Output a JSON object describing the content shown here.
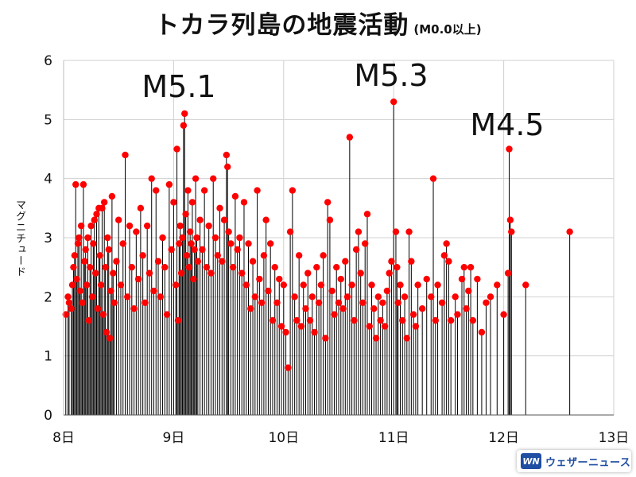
{
  "chart_data": {
    "type": "scatter",
    "title": "トカラ列島の地震活動",
    "subtitle": "(M0.0以上)",
    "xlabel": "",
    "ylabel": "マグニチュード",
    "xlim": [
      8,
      13
    ],
    "ylim": [
      0,
      6
    ],
    "xticks": [
      8,
      9,
      10,
      11,
      12,
      13
    ],
    "xtick_labels": [
      "8日",
      "9日",
      "10日",
      "11日",
      "12日",
      "13日"
    ],
    "yticks": [
      0,
      1,
      2,
      3,
      4,
      5,
      6
    ],
    "ytick_labels": [
      "0",
      "1",
      "2",
      "3",
      "4",
      "5",
      "6"
    ],
    "grid": true,
    "marker_color": "#ff0000",
    "stem_color": "#000000",
    "annotations": [
      {
        "text": "M5.1",
        "x": 9.1,
        "y": 5.1
      },
      {
        "text": "M5.3",
        "x": 11.0,
        "y": 5.3
      },
      {
        "text": "M4.5",
        "x": 12.05,
        "y": 4.5
      }
    ],
    "points": [
      [
        8.02,
        1.7
      ],
      [
        8.04,
        2.0
      ],
      [
        8.05,
        1.9
      ],
      [
        8.07,
        1.8
      ],
      [
        8.08,
        2.2
      ],
      [
        8.09,
        2.5
      ],
      [
        8.1,
        2.7
      ],
      [
        8.11,
        3.9
      ],
      [
        8.12,
        2.3
      ],
      [
        8.13,
        2.9
      ],
      [
        8.14,
        3.0
      ],
      [
        8.15,
        2.1
      ],
      [
        8.16,
        3.2
      ],
      [
        8.17,
        1.9
      ],
      [
        8.18,
        3.9
      ],
      [
        8.19,
        2.6
      ],
      [
        8.2,
        2.8
      ],
      [
        8.21,
        2.2
      ],
      [
        8.22,
        3.0
      ],
      [
        8.23,
        1.6
      ],
      [
        8.24,
        2.5
      ],
      [
        8.25,
        3.2
      ],
      [
        8.26,
        2.0
      ],
      [
        8.27,
        2.9
      ],
      [
        8.28,
        3.3
      ],
      [
        8.29,
        2.4
      ],
      [
        8.3,
        3.4
      ],
      [
        8.31,
        1.8
      ],
      [
        8.32,
        3.5
      ],
      [
        8.33,
        2.7
      ],
      [
        8.34,
        2.2
      ],
      [
        8.35,
        3.5
      ],
      [
        8.36,
        1.7
      ],
      [
        8.37,
        3.6
      ],
      [
        8.38,
        2.5
      ],
      [
        8.39,
        1.4
      ],
      [
        8.4,
        3.0
      ],
      [
        8.41,
        2.8
      ],
      [
        8.42,
        1.3
      ],
      [
        8.43,
        2.1
      ],
      [
        8.44,
        3.7
      ],
      [
        8.45,
        2.4
      ],
      [
        8.46,
        1.9
      ],
      [
        8.48,
        2.6
      ],
      [
        8.5,
        3.3
      ],
      [
        8.52,
        2.2
      ],
      [
        8.54,
        2.9
      ],
      [
        8.56,
        4.4
      ],
      [
        8.58,
        2.0
      ],
      [
        8.6,
        3.2
      ],
      [
        8.62,
        2.5
      ],
      [
        8.64,
        1.8
      ],
      [
        8.66,
        3.1
      ],
      [
        8.68,
        2.3
      ],
      [
        8.7,
        3.5
      ],
      [
        8.72,
        2.7
      ],
      [
        8.74,
        1.9
      ],
      [
        8.76,
        3.2
      ],
      [
        8.78,
        2.4
      ],
      [
        8.8,
        4.0
      ],
      [
        8.82,
        2.1
      ],
      [
        8.84,
        3.8
      ],
      [
        8.86,
        2.6
      ],
      [
        8.88,
        2.0
      ],
      [
        8.9,
        3.0
      ],
      [
        8.92,
        2.5
      ],
      [
        8.94,
        1.7
      ],
      [
        8.96,
        3.9
      ],
      [
        8.98,
        2.8
      ],
      [
        9.0,
        3.6
      ],
      [
        9.02,
        2.2
      ],
      [
        9.03,
        4.5
      ],
      [
        9.04,
        1.6
      ],
      [
        9.05,
        2.9
      ],
      [
        9.06,
        3.2
      ],
      [
        9.07,
        2.4
      ],
      [
        9.08,
        3.0
      ],
      [
        9.09,
        4.9
      ],
      [
        9.1,
        5.1
      ],
      [
        9.11,
        3.4
      ],
      [
        9.12,
        2.7
      ],
      [
        9.13,
        3.8
      ],
      [
        9.14,
        2.5
      ],
      [
        9.15,
        3.1
      ],
      [
        9.16,
        2.9
      ],
      [
        9.17,
        3.6
      ],
      [
        9.18,
        2.3
      ],
      [
        9.19,
        2.8
      ],
      [
        9.2,
        4.0
      ],
      [
        9.21,
        3.0
      ],
      [
        9.22,
        2.6
      ],
      [
        9.24,
        3.3
      ],
      [
        9.26,
        2.8
      ],
      [
        9.28,
        3.8
      ],
      [
        9.3,
        2.5
      ],
      [
        9.32,
        3.2
      ],
      [
        9.34,
        2.4
      ],
      [
        9.36,
        4.0
      ],
      [
        9.38,
        3.0
      ],
      [
        9.4,
        2.7
      ],
      [
        9.42,
        3.5
      ],
      [
        9.44,
        2.6
      ],
      [
        9.46,
        3.3
      ],
      [
        9.48,
        4.4
      ],
      [
        9.49,
        4.2
      ],
      [
        9.5,
        3.1
      ],
      [
        9.52,
        2.9
      ],
      [
        9.54,
        2.5
      ],
      [
        9.56,
        3.7
      ],
      [
        9.58,
        2.8
      ],
      [
        9.6,
        3.0
      ],
      [
        9.62,
        2.4
      ],
      [
        9.64,
        3.6
      ],
      [
        9.66,
        2.2
      ],
      [
        9.68,
        2.9
      ],
      [
        9.7,
        1.8
      ],
      [
        9.72,
        2.6
      ],
      [
        9.74,
        2.0
      ],
      [
        9.76,
        3.8
      ],
      [
        9.78,
        2.3
      ],
      [
        9.8,
        1.9
      ],
      [
        9.82,
        2.7
      ],
      [
        9.84,
        3.3
      ],
      [
        9.86,
        2.1
      ],
      [
        9.88,
        2.9
      ],
      [
        9.9,
        1.6
      ],
      [
        9.92,
        2.5
      ],
      [
        9.94,
        1.9
      ],
      [
        9.96,
        2.3
      ],
      [
        9.98,
        1.5
      ],
      [
        10.0,
        2.2
      ],
      [
        10.02,
        1.4
      ],
      [
        10.04,
        0.8
      ],
      [
        10.06,
        3.1
      ],
      [
        10.08,
        3.8
      ],
      [
        10.1,
        2.0
      ],
      [
        10.12,
        1.6
      ],
      [
        10.14,
        2.7
      ],
      [
        10.16,
        1.5
      ],
      [
        10.18,
        2.2
      ],
      [
        10.2,
        1.8
      ],
      [
        10.22,
        2.4
      ],
      [
        10.24,
        1.6
      ],
      [
        10.26,
        2.0
      ],
      [
        10.28,
        1.4
      ],
      [
        10.3,
        2.5
      ],
      [
        10.32,
        1.9
      ],
      [
        10.34,
        2.2
      ],
      [
        10.36,
        2.7
      ],
      [
        10.38,
        1.3
      ],
      [
        10.4,
        3.6
      ],
      [
        10.42,
        3.3
      ],
      [
        10.44,
        2.1
      ],
      [
        10.46,
        1.7
      ],
      [
        10.48,
        2.5
      ],
      [
        10.5,
        1.9
      ],
      [
        10.52,
        2.3
      ],
      [
        10.54,
        1.8
      ],
      [
        10.56,
        2.6
      ],
      [
        10.58,
        2.0
      ],
      [
        10.6,
        4.7
      ],
      [
        10.62,
        2.2
      ],
      [
        10.64,
        1.6
      ],
      [
        10.66,
        2.8
      ],
      [
        10.68,
        3.1
      ],
      [
        10.7,
        2.4
      ],
      [
        10.72,
        1.9
      ],
      [
        10.74,
        2.9
      ],
      [
        10.76,
        3.4
      ],
      [
        10.78,
        1.5
      ],
      [
        10.8,
        2.2
      ],
      [
        10.82,
        1.8
      ],
      [
        10.84,
        1.3
      ],
      [
        10.86,
        2.0
      ],
      [
        10.88,
        1.6
      ],
      [
        10.9,
        1.9
      ],
      [
        10.92,
        1.5
      ],
      [
        10.94,
        2.1
      ],
      [
        10.96,
        2.4
      ],
      [
        10.98,
        2.6
      ],
      [
        11.0,
        5.3
      ],
      [
        11.02,
        3.1
      ],
      [
        11.03,
        2.5
      ],
      [
        11.04,
        1.9
      ],
      [
        11.06,
        2.2
      ],
      [
        11.08,
        1.6
      ],
      [
        11.1,
        2.0
      ],
      [
        11.12,
        1.3
      ],
      [
        11.14,
        3.1
      ],
      [
        11.16,
        2.6
      ],
      [
        11.18,
        1.7
      ],
      [
        11.2,
        1.5
      ],
      [
        11.22,
        2.2
      ],
      [
        11.26,
        1.8
      ],
      [
        11.3,
        2.3
      ],
      [
        11.34,
        2.0
      ],
      [
        11.36,
        4.0
      ],
      [
        11.38,
        1.6
      ],
      [
        11.4,
        2.2
      ],
      [
        11.44,
        1.9
      ],
      [
        11.46,
        2.7
      ],
      [
        11.48,
        2.9
      ],
      [
        11.5,
        2.6
      ],
      [
        11.52,
        1.6
      ],
      [
        11.56,
        2.0
      ],
      [
        11.58,
        1.7
      ],
      [
        11.62,
        2.3
      ],
      [
        11.64,
        2.5
      ],
      [
        11.66,
        1.8
      ],
      [
        11.68,
        2.1
      ],
      [
        11.7,
        2.5
      ],
      [
        11.72,
        1.6
      ],
      [
        11.76,
        2.3
      ],
      [
        11.8,
        1.4
      ],
      [
        11.84,
        1.9
      ],
      [
        11.88,
        2.0
      ],
      [
        11.94,
        2.2
      ],
      [
        12.0,
        1.7
      ],
      [
        12.04,
        2.4
      ],
      [
        12.05,
        4.5
      ],
      [
        12.06,
        3.3
      ],
      [
        12.07,
        3.1
      ],
      [
        12.2,
        2.2
      ],
      [
        12.6,
        3.1
      ]
    ]
  }
}
